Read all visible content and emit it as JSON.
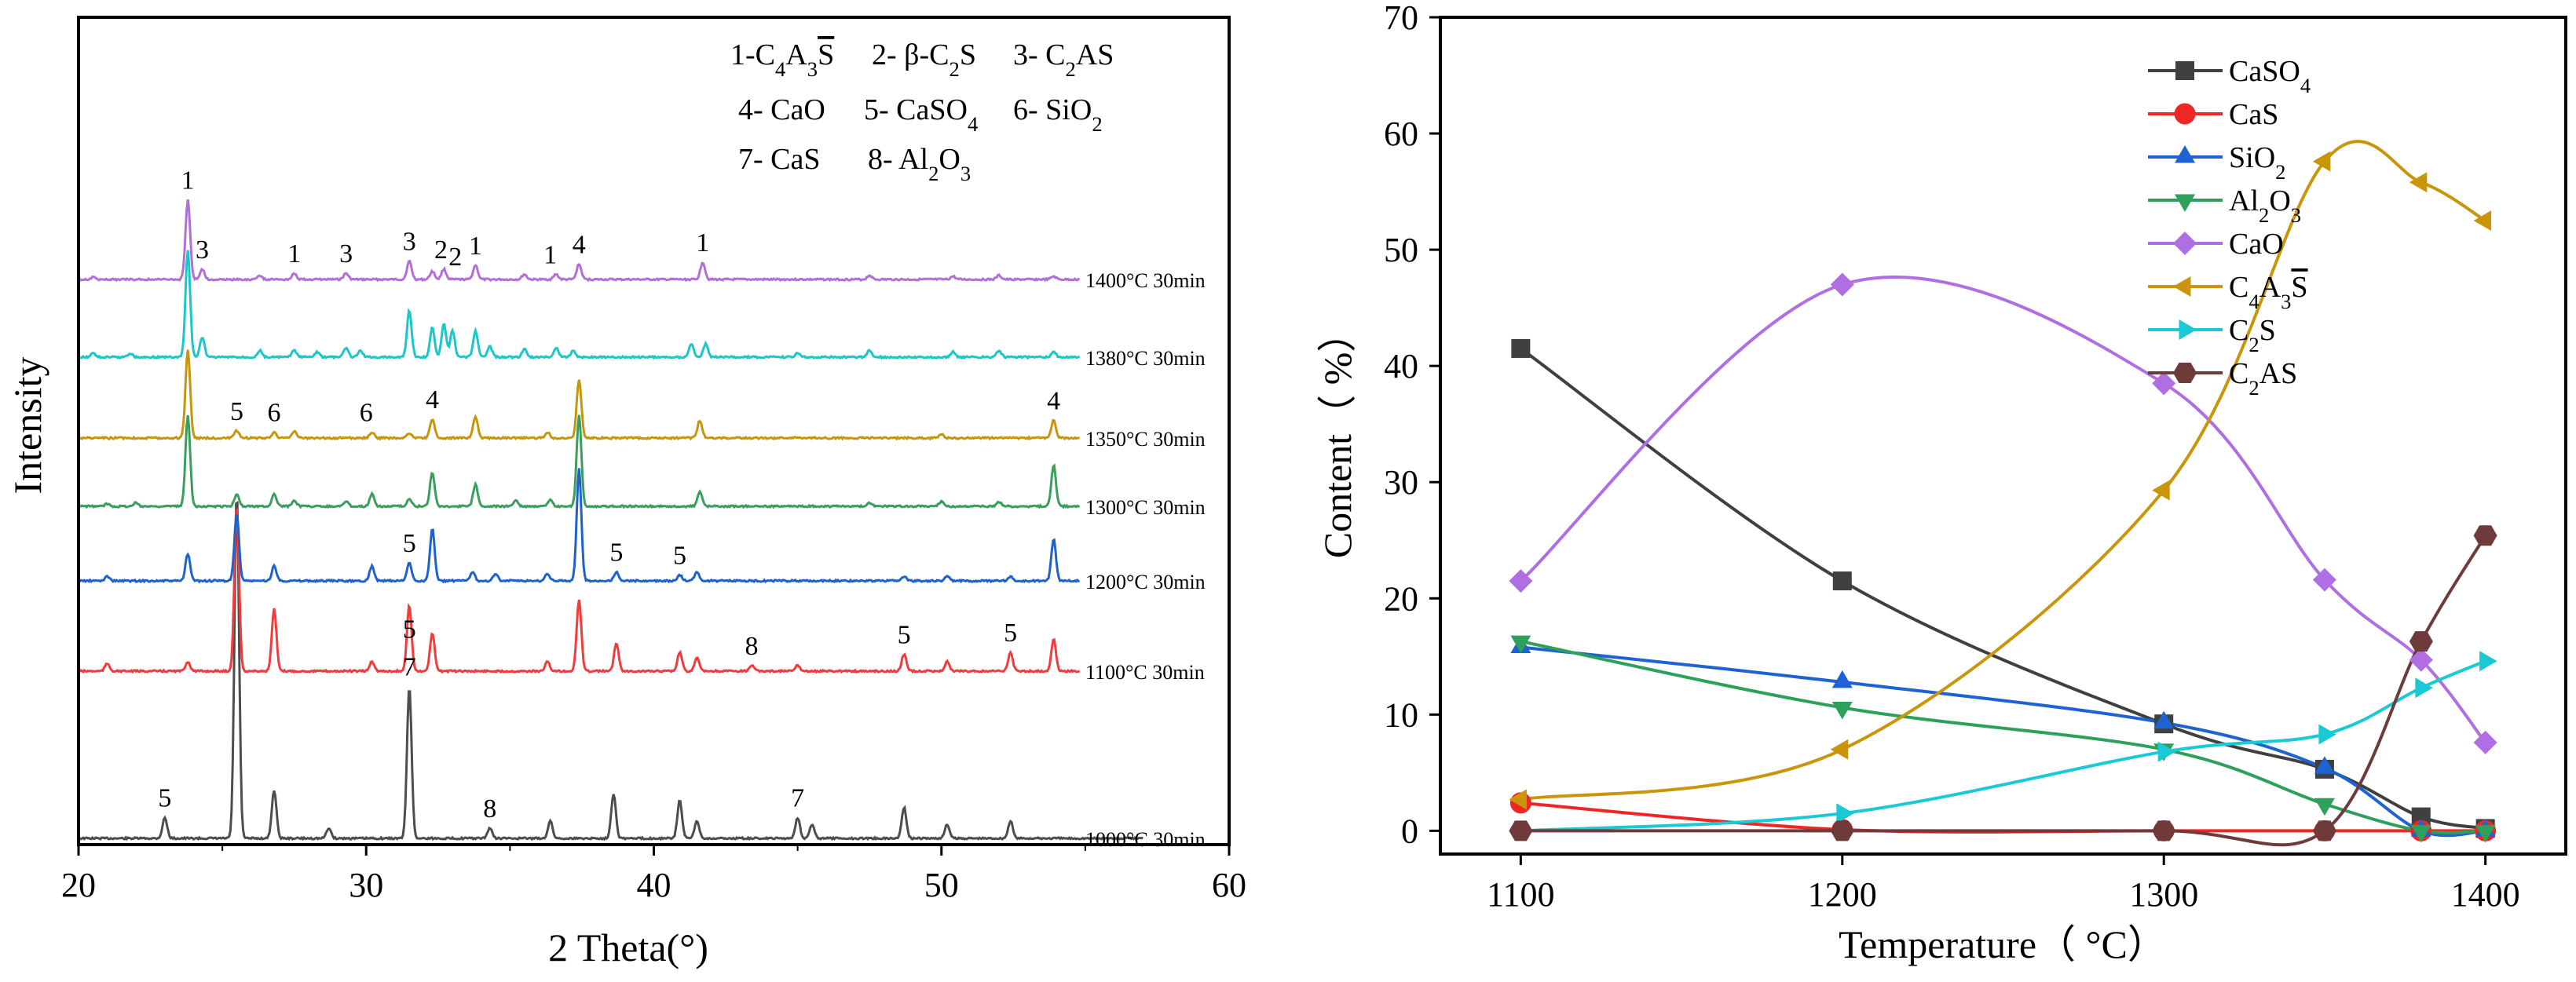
{
  "chart_data": [
    {
      "type": "line",
      "title": "",
      "xlabel": "2 Theta(°)",
      "ylabel": "Intensity",
      "xlim": [
        20,
        60
      ],
      "xticks": [
        "20",
        "30",
        "40",
        "50",
        "60"
      ],
      "yticks": false,
      "legend_entries": [
        "1-C4A3S̄",
        "2- β-C2S",
        "3- C2AS",
        "4- CaO",
        "5- CaSO4",
        "6- SiO2",
        "7- CaS",
        "8- Al2O3"
      ],
      "series": [
        {
          "name": "1000°C 30min",
          "color": "#4d4d4d",
          "peaks": [
            [
              23.0,
              0.06
            ],
            [
              25.5,
              1.0
            ],
            [
              26.8,
              0.14
            ],
            [
              28.7,
              0.03
            ],
            [
              31.5,
              0.44
            ],
            [
              34.3,
              0.03
            ],
            [
              36.4,
              0.05
            ],
            [
              38.6,
              0.13
            ],
            [
              40.9,
              0.11
            ],
            [
              41.5,
              0.05
            ],
            [
              45.0,
              0.06
            ],
            [
              45.5,
              0.04
            ],
            [
              48.7,
              0.09
            ],
            [
              50.2,
              0.04
            ],
            [
              52.4,
              0.05
            ]
          ],
          "labels": [
            {
              "x": 23.0,
              "text": "5"
            },
            {
              "x": 31.5,
              "text": "5",
              "row": 2
            },
            {
              "x": 31.5,
              "text": "7"
            },
            {
              "x": 34.3,
              "text": "8"
            },
            {
              "x": 45.0,
              "text": "7"
            }
          ]
        },
        {
          "name": "1100°C 30min",
          "color": "#f03c3c",
          "peaks": [
            [
              21.0,
              0.04
            ],
            [
              23.8,
              0.05
            ],
            [
              25.5,
              0.88
            ],
            [
              26.8,
              0.33
            ],
            [
              30.2,
              0.05
            ],
            [
              31.5,
              0.35
            ],
            [
              32.3,
              0.2
            ],
            [
              36.3,
              0.05
            ],
            [
              37.4,
              0.38
            ],
            [
              38.7,
              0.15
            ],
            [
              40.9,
              0.1
            ],
            [
              41.5,
              0.07
            ],
            [
              43.4,
              0.03
            ],
            [
              45.0,
              0.03
            ],
            [
              48.7,
              0.09
            ],
            [
              50.2,
              0.05
            ],
            [
              52.4,
              0.1
            ],
            [
              53.9,
              0.17
            ]
          ],
          "labels": [
            {
              "x": 43.4,
              "text": "8"
            },
            {
              "x": 48.7,
              "text": "5"
            },
            {
              "x": 52.4,
              "text": "5"
            }
          ]
        },
        {
          "name": "1200°C 30min",
          "color": "#1f62c9",
          "peaks": [
            [
              21.0,
              0.03
            ],
            [
              23.8,
              0.18
            ],
            [
              25.5,
              0.45
            ],
            [
              26.8,
              0.1
            ],
            [
              30.2,
              0.1
            ],
            [
              31.5,
              0.12
            ],
            [
              32.3,
              0.35
            ],
            [
              33.7,
              0.06
            ],
            [
              34.5,
              0.05
            ],
            [
              36.3,
              0.05
            ],
            [
              37.4,
              0.75
            ],
            [
              38.7,
              0.06
            ],
            [
              40.9,
              0.04
            ],
            [
              41.5,
              0.06
            ],
            [
              48.7,
              0.03
            ],
            [
              50.2,
              0.03
            ],
            [
              52.4,
              0.03
            ],
            [
              53.9,
              0.28
            ]
          ],
          "labels": [
            {
              "x": 31.5,
              "text": "5"
            },
            {
              "x": 38.7,
              "text": "5"
            },
            {
              "x": 40.9,
              "text": "5"
            }
          ]
        },
        {
          "name": "1300°C 30min",
          "color": "#3a9e5c",
          "peaks": [
            [
              21.0,
              0.02
            ],
            [
              22.0,
              0.03
            ],
            [
              23.8,
              0.75
            ],
            [
              25.5,
              0.1
            ],
            [
              26.8,
              0.1
            ],
            [
              27.5,
              0.05
            ],
            [
              29.3,
              0.04
            ],
            [
              30.2,
              0.1
            ],
            [
              31.5,
              0.06
            ],
            [
              32.3,
              0.28
            ],
            [
              33.8,
              0.18
            ],
            [
              35.2,
              0.05
            ],
            [
              36.4,
              0.05
            ],
            [
              37.4,
              0.75
            ],
            [
              41.6,
              0.12
            ],
            [
              47.5,
              0.03
            ],
            [
              50.0,
              0.04
            ],
            [
              52.0,
              0.04
            ],
            [
              53.9,
              0.34
            ]
          ],
          "labels": []
        },
        {
          "name": "1350°C 30min",
          "color": "#c7960f",
          "peaks": [
            [
              23.8,
              0.75
            ],
            [
              25.5,
              0.06
            ],
            [
              26.8,
              0.05
            ],
            [
              27.5,
              0.06
            ],
            [
              30.2,
              0.05
            ],
            [
              31.5,
              0.04
            ],
            [
              32.3,
              0.16
            ],
            [
              33.8,
              0.18
            ],
            [
              36.3,
              0.05
            ],
            [
              37.4,
              0.5
            ],
            [
              41.6,
              0.15
            ],
            [
              50.0,
              0.03
            ],
            [
              53.9,
              0.15
            ]
          ],
          "labels": [
            {
              "x": 25.5,
              "text": "5"
            },
            {
              "x": 26.8,
              "text": "6"
            },
            {
              "x": 30.0,
              "text": "6"
            },
            {
              "x": 32.3,
              "text": "4"
            },
            {
              "x": 53.9,
              "text": "4"
            }
          ]
        },
        {
          "name": "1380°C 30min",
          "color": "#1cc7c7",
          "peaks": [
            [
              20.5,
              0.03
            ],
            [
              21.8,
              0.03
            ],
            [
              23.8,
              0.8
            ],
            [
              24.3,
              0.15
            ],
            [
              26.3,
              0.05
            ],
            [
              27.5,
              0.05
            ],
            [
              28.3,
              0.04
            ],
            [
              29.3,
              0.07
            ],
            [
              29.8,
              0.05
            ],
            [
              31.5,
              0.35
            ],
            [
              32.3,
              0.22
            ],
            [
              32.7,
              0.25
            ],
            [
              33.0,
              0.2
            ],
            [
              33.8,
              0.2
            ],
            [
              34.3,
              0.08
            ],
            [
              35.5,
              0.06
            ],
            [
              36.6,
              0.07
            ],
            [
              37.2,
              0.05
            ],
            [
              41.3,
              0.1
            ],
            [
              41.8,
              0.1
            ],
            [
              45.0,
              0.03
            ],
            [
              47.5,
              0.05
            ],
            [
              50.4,
              0.04
            ],
            [
              52.0,
              0.05
            ],
            [
              53.9,
              0.04
            ]
          ],
          "labels": []
        },
        {
          "name": "1400°C 30min",
          "color": "#b26fd6",
          "peaks": [
            [
              20.5,
              0.02
            ],
            [
              23.8,
              0.78
            ],
            [
              24.3,
              0.1
            ],
            [
              26.3,
              0.04
            ],
            [
              27.5,
              0.06
            ],
            [
              29.3,
              0.06
            ],
            [
              31.5,
              0.18
            ],
            [
              32.3,
              0.08
            ],
            [
              32.7,
              0.1
            ],
            [
              33.8,
              0.14
            ],
            [
              35.5,
              0.05
            ],
            [
              36.6,
              0.05
            ],
            [
              37.4,
              0.15
            ],
            [
              41.7,
              0.17
            ],
            [
              47.5,
              0.04
            ],
            [
              50.4,
              0.03
            ],
            [
              52.0,
              0.04
            ],
            [
              53.9,
              0.03
            ]
          ],
          "labels": [
            {
              "x": 23.8,
              "text": "1",
              "dy": -0.78
            },
            {
              "x": 24.3,
              "text": "3"
            },
            {
              "x": 27.5,
              "text": "1"
            },
            {
              "x": 29.3,
              "text": "3"
            },
            {
              "x": 31.5,
              "text": "3"
            },
            {
              "x": 32.6,
              "text": "2"
            },
            {
              "x": 33.1,
              "text": "2"
            },
            {
              "x": 33.8,
              "text": "1"
            },
            {
              "x": 36.4,
              "text": "1"
            },
            {
              "x": 37.4,
              "text": "4"
            },
            {
              "x": 41.7,
              "text": "1"
            }
          ]
        }
      ]
    },
    {
      "type": "line",
      "title": "",
      "xlabel": "Temperature（ °C）",
      "ylabel": "Content（ %）",
      "xlim": [
        1075,
        1425
      ],
      "ylim": [
        -2,
        70
      ],
      "xticks": [
        1100,
        1200,
        1300,
        1400
      ],
      "yticks": [
        0,
        10,
        20,
        30,
        40,
        50,
        60,
        70
      ],
      "x": [
        1100,
        1200,
        1300,
        1350,
        1380,
        1400
      ],
      "series": [
        {
          "name": "CaSO4",
          "color": "#404040",
          "marker": "square",
          "values": [
            41.5,
            21.5,
            9.2,
            5.3,
            1.2,
            0.2
          ]
        },
        {
          "name": "CaS",
          "color": "#f02525",
          "marker": "circle",
          "values": [
            2.4,
            0.1,
            0.0,
            0.0,
            0.0,
            0.0
          ]
        },
        {
          "name": "SiO2",
          "color": "#1f62d1",
          "marker": "triangle-up",
          "values": [
            15.8,
            12.8,
            9.3,
            5.4,
            0.0,
            0.0
          ]
        },
        {
          "name": "Al2O3",
          "color": "#2ea05c",
          "marker": "triangle-down",
          "values": [
            16.3,
            10.6,
            7.0,
            2.3,
            0.0,
            0.0
          ]
        },
        {
          "name": "CaO",
          "color": "#b06ee3",
          "marker": "diamond",
          "values": [
            21.5,
            47.0,
            38.5,
            21.6,
            14.7,
            7.6
          ]
        },
        {
          "name": "C4A3S̄",
          "color": "#c9960b",
          "marker": "triangle-left",
          "values": [
            2.7,
            7.0,
            29.3,
            57.6,
            55.8,
            52.5
          ]
        },
        {
          "name": "C2S",
          "color": "#1ac9d4",
          "marker": "triangle-right",
          "values": [
            0.0,
            1.5,
            6.8,
            8.3,
            12.3,
            14.6
          ]
        },
        {
          "name": "C2AS",
          "color": "#6e3a3a",
          "marker": "hexagon",
          "values": [
            0.0,
            0.0,
            0.0,
            0.0,
            16.3,
            25.4
          ]
        }
      ]
    }
  ]
}
